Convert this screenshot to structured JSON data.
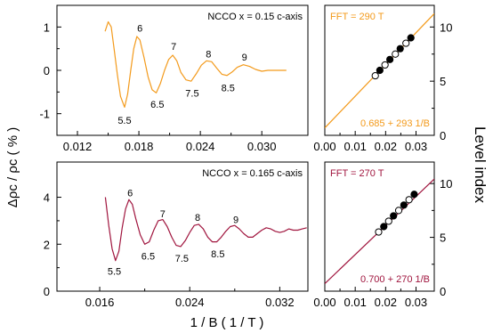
{
  "figure": {
    "y_axis_label": "Δρc / ρc  ( % )",
    "x_axis_label": "1 / B ( 1 / T )",
    "right_axis_label": "Level index"
  },
  "chart_data": [
    {
      "type": "line",
      "title": "NCCO x = 0.15 c-axis",
      "xlim": [
        0.01,
        0.0345
      ],
      "ylim": [
        -1.5,
        1.5
      ],
      "x_ticks": [
        0.012,
        0.018,
        0.024,
        0.03
      ],
      "x_tick_labels": [
        "0.012",
        "0.018",
        "0.024",
        "0.030"
      ],
      "y_ticks": [
        -1,
        0,
        1
      ],
      "y_tick_labels": [
        "-1",
        "0",
        "1"
      ],
      "series": [
        {
          "color": "#f39a1b",
          "x": [
            0.0147,
            0.015,
            0.0153,
            0.0156,
            0.0159,
            0.0162,
            0.0166,
            0.0169,
            0.0172,
            0.0175,
            0.0178,
            0.0181,
            0.0185,
            0.0189,
            0.0193,
            0.0197,
            0.0201,
            0.0205,
            0.0209,
            0.0213,
            0.0217,
            0.0221,
            0.0226,
            0.0231,
            0.0236,
            0.0241,
            0.0246,
            0.0251,
            0.0256,
            0.0261,
            0.0266,
            0.0271,
            0.0276,
            0.0282,
            0.0288,
            0.0294,
            0.03,
            0.0306,
            0.0312,
            0.0318,
            0.0324
          ],
          "y": [
            0.9,
            1.12,
            1.0,
            0.45,
            -0.1,
            -0.6,
            -0.85,
            -0.55,
            0.0,
            0.5,
            0.78,
            0.7,
            0.3,
            -0.15,
            -0.45,
            -0.52,
            -0.3,
            0.0,
            0.25,
            0.35,
            0.22,
            -0.05,
            -0.22,
            -0.25,
            -0.08,
            0.12,
            0.22,
            0.2,
            0.05,
            -0.09,
            -0.12,
            -0.04,
            0.07,
            0.13,
            0.09,
            0.02,
            -0.02,
            0.0,
            0.0,
            0.0,
            0.0
          ]
        }
      ],
      "labels": [
        {
          "text": "6",
          "x": 0.0181,
          "y": 0.98
        },
        {
          "text": "7",
          "x": 0.0214,
          "y": 0.55
        },
        {
          "text": "8",
          "x": 0.0248,
          "y": 0.38
        },
        {
          "text": "9",
          "x": 0.0283,
          "y": 0.31
        },
        {
          "text": "5.5",
          "x": 0.0166,
          "y": -1.15
        },
        {
          "text": "6.5",
          "x": 0.0198,
          "y": -0.78
        },
        {
          "text": "7.5",
          "x": 0.0232,
          "y": -0.52
        },
        {
          "text": "8.5",
          "x": 0.0267,
          "y": -0.4
        }
      ]
    },
    {
      "type": "scatter",
      "title": "FFT = 290 T",
      "fit_text": "0.685 + 293 1/B",
      "xlim": [
        0,
        0.036
      ],
      "ylim": [
        0,
        12
      ],
      "x_ticks": [
        0.0,
        0.01,
        0.02,
        0.03
      ],
      "x_tick_labels": [
        "0.00",
        "0.01",
        "0.02",
        "0.03"
      ],
      "y_ticks": [
        0,
        5,
        10
      ],
      "y_tick_labels": [
        "0",
        "5",
        "10"
      ],
      "accent": "#f39a1b",
      "fit_line": {
        "intercept": 0.685,
        "slope": 293
      },
      "series": [
        {
          "name": "",
          "marker": "open",
          "x": [
            0.0166,
            0.0198,
            0.0232,
            0.0267
          ],
          "y": [
            5.5,
            6.5,
            7.5,
            8.5
          ]
        },
        {
          "name": "",
          "marker": "filled",
          "x": [
            0.0181,
            0.0214,
            0.0248,
            0.0283
          ],
          "y": [
            6,
            7,
            8,
            9
          ]
        }
      ]
    },
    {
      "type": "line",
      "title": "NCCO x = 0.165 c-axis",
      "xlim": [
        0.0122,
        0.0345
      ],
      "ylim": [
        0,
        5.5
      ],
      "x_ticks": [
        0.016,
        0.024,
        0.032
      ],
      "x_tick_labels": [
        "0.016",
        "0.024",
        "0.032"
      ],
      "y_ticks": [
        0,
        2,
        4
      ],
      "y_tick_labels": [
        "0",
        "2",
        "4"
      ],
      "series": [
        {
          "color": "#a0153e",
          "x": [
            0.0165,
            0.0168,
            0.0171,
            0.0174,
            0.0177,
            0.018,
            0.0183,
            0.0186,
            0.0189,
            0.0192,
            0.0196,
            0.02,
            0.0204,
            0.0208,
            0.0212,
            0.0216,
            0.022,
            0.0224,
            0.0228,
            0.0232,
            0.0236,
            0.024,
            0.0244,
            0.0248,
            0.0252,
            0.0256,
            0.026,
            0.0264,
            0.0268,
            0.0272,
            0.0276,
            0.028,
            0.0284,
            0.0288,
            0.0292,
            0.0296,
            0.03,
            0.0304,
            0.0308,
            0.0312,
            0.0316,
            0.032,
            0.0324,
            0.0328,
            0.0332,
            0.0336,
            0.034,
            0.0344
          ],
          "y": [
            4.0,
            2.8,
            1.8,
            1.3,
            1.7,
            2.7,
            3.5,
            3.9,
            3.7,
            3.1,
            2.4,
            2.0,
            2.1,
            2.6,
            3.0,
            3.05,
            2.75,
            2.3,
            1.95,
            1.9,
            2.15,
            2.5,
            2.8,
            2.85,
            2.65,
            2.3,
            2.1,
            2.1,
            2.3,
            2.55,
            2.75,
            2.8,
            2.65,
            2.45,
            2.3,
            2.3,
            2.45,
            2.6,
            2.7,
            2.65,
            2.55,
            2.5,
            2.55,
            2.65,
            2.6,
            2.6,
            2.65,
            2.7
          ]
        }
      ],
      "labels": [
        {
          "text": "6",
          "x": 0.0187,
          "y": 4.2
        },
        {
          "text": "7",
          "x": 0.0216,
          "y": 3.3
        },
        {
          "text": "8",
          "x": 0.0247,
          "y": 3.15
        },
        {
          "text": "9",
          "x": 0.0281,
          "y": 3.05
        },
        {
          "text": "5.5",
          "x": 0.0173,
          "y": 0.85
        },
        {
          "text": "6.5",
          "x": 0.0203,
          "y": 1.5
        },
        {
          "text": "7.5",
          "x": 0.0233,
          "y": 1.4
        },
        {
          "text": "8.5",
          "x": 0.0265,
          "y": 1.6
        }
      ]
    },
    {
      "type": "scatter",
      "title": "FFT = 270 T",
      "fit_text": "0.700 + 270 1/B",
      "xlim": [
        0,
        0.036
      ],
      "ylim": [
        0,
        12
      ],
      "x_ticks": [
        0.0,
        0.01,
        0.02,
        0.03
      ],
      "x_tick_labels": [
        "0.00",
        "0.01",
        "0.02",
        "0.03"
      ],
      "y_ticks": [
        0,
        5,
        10
      ],
      "y_tick_labels": [
        "0",
        "5",
        "10"
      ],
      "accent": "#a0153e",
      "fit_line": {
        "intercept": 0.7,
        "slope": 270
      },
      "series": [
        {
          "name": "",
          "marker": "open",
          "x": [
            0.0177,
            0.021,
            0.0243,
            0.0277
          ],
          "y": [
            5.5,
            6.5,
            7.5,
            8.5
          ]
        },
        {
          "name": "",
          "marker": "filled",
          "x": [
            0.0194,
            0.0226,
            0.026,
            0.0294
          ],
          "y": [
            6,
            7,
            8,
            9
          ]
        }
      ]
    }
  ]
}
